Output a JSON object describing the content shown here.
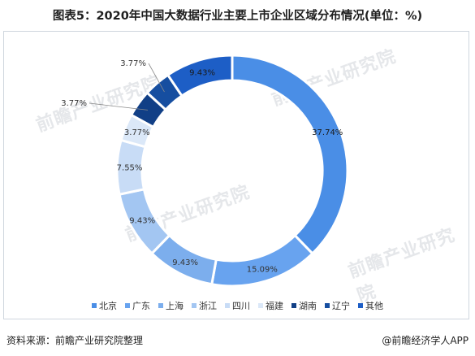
{
  "title": "图表5：2020年中国大数据行业主要上市企业区域分布情况(单位：%)",
  "source_label": "资料来源：前瞻产业研究院整理",
  "brand_label": "@前瞻经济学人APP",
  "watermark_text": "前瞻产业研究院",
  "chart_data": {
    "type": "pie",
    "title": "图表5：2020年中国大数据行业主要上市企业区域分布情况(单位：%)",
    "unit": "%",
    "donut": true,
    "legend_position": "bottom",
    "categories": [
      "北京",
      "广东",
      "上海",
      "浙江",
      "四川",
      "福建",
      "湖南",
      "辽宁",
      "其他"
    ],
    "values": [
      37.74,
      15.09,
      9.43,
      9.43,
      7.55,
      3.77,
      3.77,
      3.77,
      9.43
    ],
    "labels": [
      "37.74%",
      "15.09%",
      "9.43%",
      "9.43%",
      "7.55%",
      "3.77%",
      "3.77%",
      "3.77%",
      "9.43%"
    ],
    "colors": [
      "#4a8ee6",
      "#68a3ef",
      "#7caeed",
      "#a3c6f2",
      "#c8dcf6",
      "#dbe8f8",
      "#113f86",
      "#164ea0",
      "#1d5ec6"
    ]
  }
}
